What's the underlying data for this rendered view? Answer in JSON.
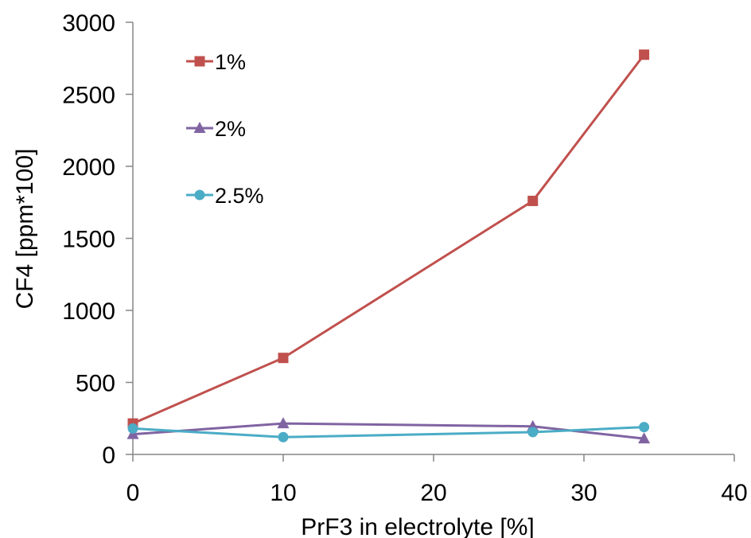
{
  "chart_data": {
    "type": "line",
    "xlabel": "PrF3 in electrolyte [%]",
    "ylabel": "CF4 [ppm*100]",
    "xlim": [
      0,
      40
    ],
    "ylim": [
      0,
      3000
    ],
    "xticks": [
      "0",
      "10",
      "20",
      "30",
      "40"
    ],
    "yticks": [
      "0",
      "500",
      "1000",
      "1500",
      "2000",
      "2500",
      "3000"
    ],
    "grid": false,
    "legend_position": "top-left",
    "series": [
      {
        "name": "1%",
        "color": "#c0504d",
        "marker": "square",
        "x": [
          0,
          10,
          26.6,
          34
        ],
        "y": [
          215,
          670,
          1760,
          2775
        ]
      },
      {
        "name": "2%",
        "color": "#8064a2",
        "marker": "triangle",
        "x": [
          0,
          10,
          26.6,
          34
        ],
        "y": [
          140,
          215,
          195,
          110
        ]
      },
      {
        "name": "2.5%",
        "color": "#4bacc6",
        "marker": "circle",
        "x": [
          0,
          10,
          26.6,
          34
        ],
        "y": [
          180,
          120,
          155,
          190
        ]
      }
    ]
  }
}
